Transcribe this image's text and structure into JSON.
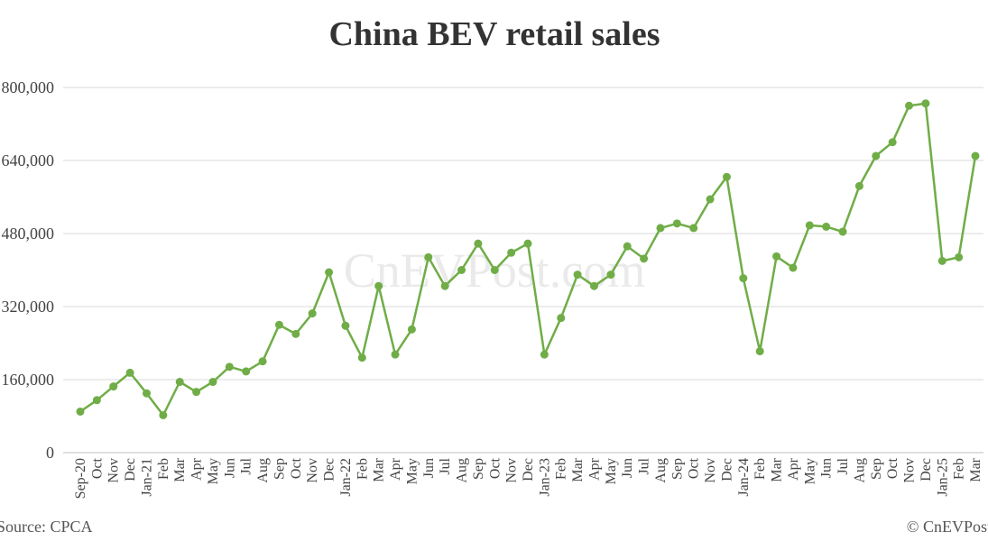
{
  "chart_data": {
    "type": "line",
    "title": "China BEV retail sales",
    "xlabel": "",
    "ylabel": "",
    "ylim": [
      0,
      800000
    ],
    "y_ticks": [
      "0",
      "160,000",
      "320,000",
      "480,000",
      "640,000",
      "800,000"
    ],
    "y_tick_values": [
      0,
      160000,
      320000,
      480000,
      640000,
      800000
    ],
    "grid": true,
    "legend": "none",
    "line_color": "#70AD47",
    "categories": [
      "Sep-20",
      "Oct",
      "Nov",
      "Dec",
      "Jan-21",
      "Feb",
      "Mar",
      "Apr",
      "May",
      "Jun",
      "Jul",
      "Aug",
      "Sep",
      "Oct",
      "Nov",
      "Dec",
      "Jan-22",
      "Feb",
      "Mar",
      "Apr",
      "May",
      "Jun",
      "Jul",
      "Aug",
      "Sep",
      "Oct",
      "Nov",
      "Dec",
      "Jan-23",
      "Feb",
      "Mar",
      "Apr",
      "May",
      "Jun",
      "Jul",
      "Aug",
      "Sep",
      "Oct",
      "Nov",
      "Dec",
      "Jan-24",
      "Feb",
      "Mar",
      "Apr",
      "May",
      "Jun",
      "Jul",
      "Aug",
      "Sep",
      "Oct",
      "Nov",
      "Dec",
      "Jan-25",
      "Feb",
      "Mar"
    ],
    "series": [
      {
        "values": [
          90000,
          115000,
          145000,
          175000,
          130000,
          82000,
          155000,
          133000,
          155000,
          188000,
          178000,
          200000,
          280000,
          260000,
          305000,
          395000,
          278000,
          208000,
          365000,
          215000,
          270000,
          428000,
          365000,
          400000,
          458000,
          400000,
          438000,
          458000,
          215000,
          295000,
          390000,
          365000,
          390000,
          452000,
          425000,
          492000,
          502000,
          492000,
          555000,
          604000,
          382000,
          222000,
          430000,
          405000,
          498000,
          495000,
          484000,
          584000,
          650000,
          680000,
          760000,
          765000,
          420000,
          428000,
          650000
        ]
      }
    ]
  },
  "watermark": "CnEVPost.com",
  "footer": {
    "source": "Source: CPCA",
    "credit": "© CnEVPost"
  }
}
